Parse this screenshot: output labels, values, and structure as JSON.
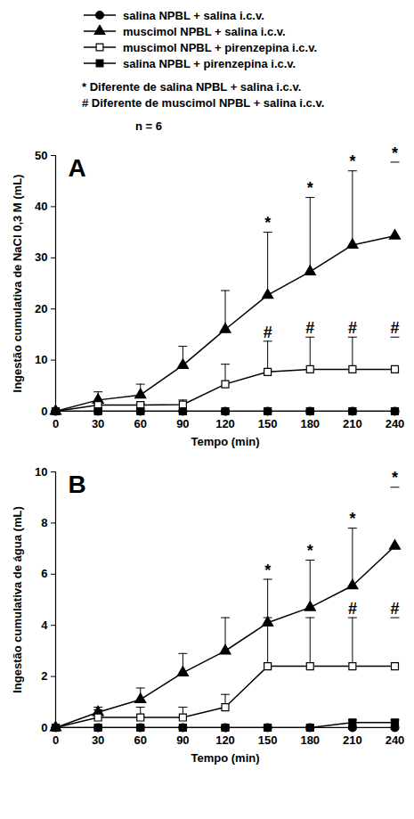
{
  "chart_data": [
    {
      "type": "line",
      "panel_label": "A",
      "x_label": "Tempo (min)",
      "y_label": "Ingestão cumulativa de NaCl 0,3 M (mL)",
      "x": [
        0,
        30,
        60,
        90,
        120,
        150,
        180,
        210,
        240
      ],
      "xlim": [
        0,
        240
      ],
      "xticks": [
        0,
        30,
        60,
        90,
        120,
        150,
        180,
        210,
        240
      ],
      "ylim": [
        0,
        50
      ],
      "yticks": [
        0,
        10,
        20,
        30,
        40,
        50
      ],
      "grid": false,
      "series": [
        {
          "name": "salina NPBL + salina i.c.v.",
          "color": "#000000",
          "marker": "circle",
          "values": [
            0,
            0,
            0,
            0,
            0,
            0,
            0,
            0,
            0
          ],
          "errors": [
            0,
            0,
            0,
            0,
            0,
            0,
            0,
            0,
            0
          ]
        },
        {
          "name": "muscimol NPBL + salina i.c.v.",
          "color": "#000000",
          "marker": "triangle",
          "values": [
            0,
            2.2,
            3.2,
            9,
            16,
            22.7,
            27.3,
            32.5,
            34.3
          ],
          "errors": [
            0,
            1.6,
            2.1,
            3.7,
            7.6,
            12.3,
            14.5,
            14.5,
            14.4
          ]
        },
        {
          "name": "muscimol NPBL + pirenzepina i.c.v.",
          "color": "#000000",
          "marker": "square-open",
          "values": [
            0,
            1.2,
            1.2,
            1.3,
            5.3,
            7.7,
            8.2,
            8.2,
            8.2
          ],
          "errors": [
            0,
            0.3,
            0.3,
            0.9,
            3.9,
            6,
            6.3,
            6.3,
            6.3
          ]
        },
        {
          "name": "salina NPBL + pirenzepina i.c.v.",
          "color": "#000000",
          "marker": "square",
          "values": [
            0,
            0,
            0,
            0,
            0,
            0,
            0,
            0,
            0
          ],
          "errors": [
            0,
            0,
            0,
            0,
            0,
            0,
            0,
            0,
            0
          ]
        }
      ],
      "annotations": [
        {
          "series": "muscimol NPBL + salina i.c.v.",
          "x": 150,
          "text": "*"
        },
        {
          "series": "muscimol NPBL + salina i.c.v.",
          "x": 180,
          "text": "*"
        },
        {
          "series": "muscimol NPBL + salina i.c.v.",
          "x": 210,
          "text": "*"
        },
        {
          "series": "muscimol NPBL + salina i.c.v.",
          "x": 240,
          "text": "*"
        },
        {
          "series": "muscimol NPBL + pirenzepina i.c.v.",
          "x": 150,
          "text": "#"
        },
        {
          "series": "muscimol NPBL + pirenzepina i.c.v.",
          "x": 180,
          "text": "#"
        },
        {
          "series": "muscimol NPBL + pirenzepina i.c.v.",
          "x": 210,
          "text": "#"
        },
        {
          "series": "muscimol NPBL + pirenzepina i.c.v.",
          "x": 240,
          "text": "#"
        }
      ]
    },
    {
      "type": "line",
      "panel_label": "B",
      "x_label": "Tempo (min)",
      "y_label": "Ingestão cumulativa de água (mL)",
      "x": [
        0,
        30,
        60,
        90,
        120,
        150,
        180,
        210,
        240
      ],
      "xlim": [
        0,
        240
      ],
      "xticks": [
        0,
        30,
        60,
        90,
        120,
        150,
        180,
        210,
        240
      ],
      "ylim": [
        0,
        10
      ],
      "yticks": [
        0,
        2,
        4,
        6,
        8,
        10
      ],
      "grid": false,
      "series": [
        {
          "name": "salina NPBL + salina i.c.v.",
          "color": "#000000",
          "marker": "circle",
          "values": [
            0,
            0,
            0,
            0,
            0,
            0,
            0,
            0,
            0
          ],
          "errors": [
            0,
            0,
            0,
            0,
            0,
            0,
            0,
            0,
            0
          ]
        },
        {
          "name": "muscimol NPBL + salina i.c.v.",
          "color": "#000000",
          "marker": "triangle",
          "values": [
            0,
            0.6,
            1.1,
            2.15,
            3,
            4.1,
            4.7,
            5.55,
            7.1
          ],
          "errors": [
            0,
            0.2,
            0.45,
            0.75,
            1.3,
            1.7,
            1.85,
            2.25,
            2.3
          ]
        },
        {
          "name": "muscimol NPBL + pirenzepina i.c.v.",
          "color": "#000000",
          "marker": "square-open",
          "values": [
            0,
            0.4,
            0.4,
            0.4,
            0.8,
            2.4,
            2.4,
            2.4,
            2.4
          ],
          "errors": [
            0,
            0.3,
            0.4,
            0.4,
            0.5,
            1.9,
            1.9,
            1.9,
            1.9
          ]
        },
        {
          "name": "salina NPBL + pirenzepina i.c.v.",
          "color": "#000000",
          "marker": "square",
          "values": [
            0,
            0,
            0,
            0,
            0,
            0,
            0,
            0.2,
            0.2
          ],
          "errors": [
            0,
            0,
            0,
            0,
            0,
            0,
            0,
            0.1,
            0.1
          ]
        }
      ],
      "annotations": [
        {
          "series": "muscimol NPBL + salina i.c.v.",
          "x": 150,
          "text": "*"
        },
        {
          "series": "muscimol NPBL + salina i.c.v.",
          "x": 180,
          "text": "*"
        },
        {
          "series": "muscimol NPBL + salina i.c.v.",
          "x": 210,
          "text": "*"
        },
        {
          "series": "muscimol NPBL + salina i.c.v.",
          "x": 240,
          "text": "*"
        },
        {
          "series": "muscimol NPBL + pirenzepina i.c.v.",
          "x": 210,
          "text": "#"
        },
        {
          "series": "muscimol NPBL + pirenzepina i.c.v.",
          "x": 240,
          "text": "#"
        }
      ]
    }
  ],
  "notes": [
    "* Diferente de salina NPBL + salina i.c.v.",
    "# Diferente de muscimol NPBL + salina i.c.v.",
    "n = 6"
  ]
}
